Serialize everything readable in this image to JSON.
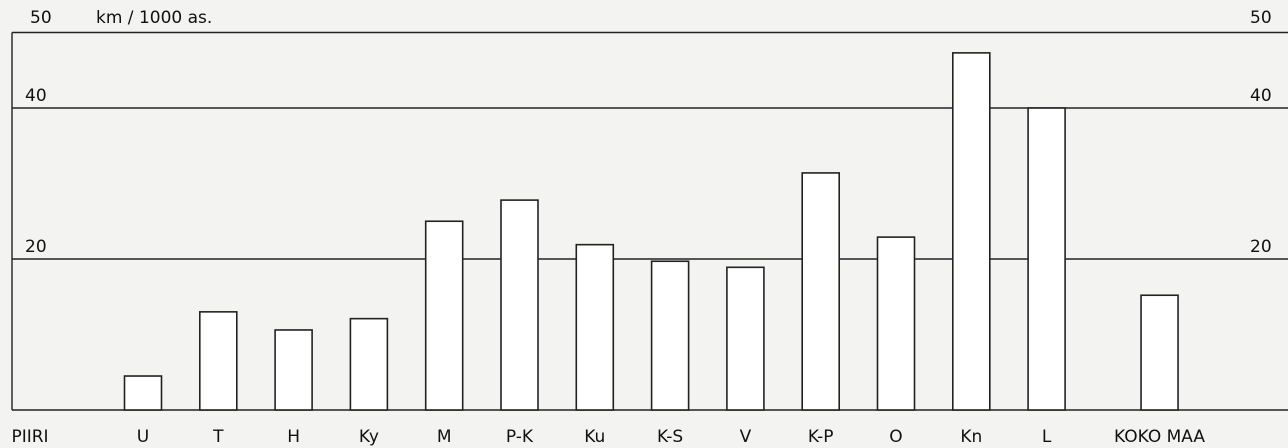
{
  "chart_data": {
    "type": "bar",
    "y_label": "km / 1000 as.",
    "x_label": "PIIRI",
    "categories": [
      "U",
      "T",
      "H",
      "Ky",
      "M",
      "P-K",
      "Ku",
      "K-S",
      "V",
      "K-P",
      "O",
      "Kn",
      "L",
      "KOKO MAA"
    ],
    "values": [
      4.5,
      13.0,
      10.6,
      12.1,
      25.0,
      27.8,
      21.9,
      19.7,
      18.9,
      31.4,
      22.9,
      47.3,
      40.0,
      15.2
    ],
    "color": "#ffffff",
    "ylim": [
      0,
      50
    ],
    "yticks": [
      20,
      40,
      50
    ],
    "grid": true
  }
}
